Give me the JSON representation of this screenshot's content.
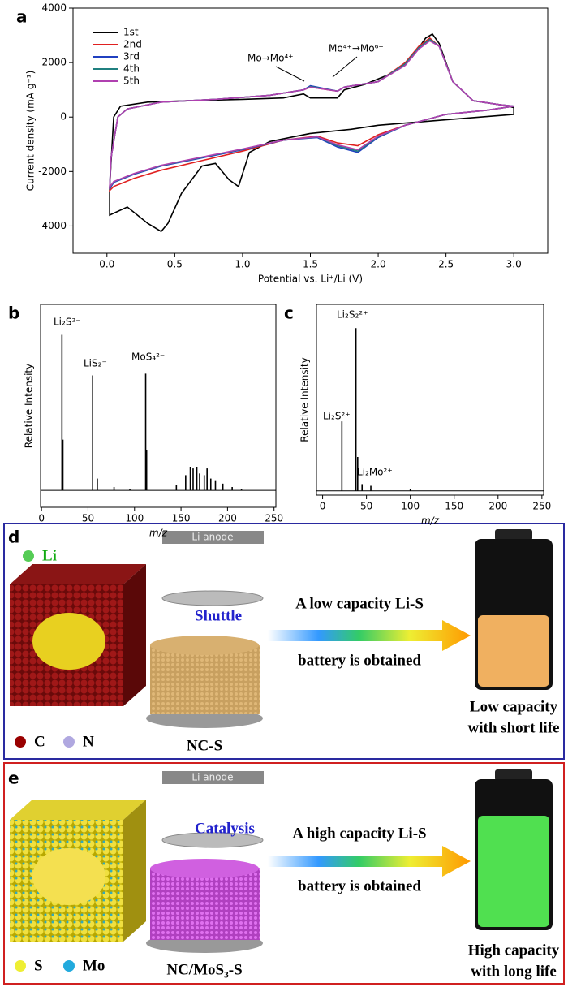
{
  "chart_data": [
    {
      "type": "line",
      "panel": "a",
      "xlabel": "Potential vs. Li⁺/Li (V)",
      "ylabel": "Current density (mA g⁻¹)",
      "xlim": [
        -0.25,
        3.25
      ],
      "ylim": [
        -5000,
        4000
      ],
      "xticks": [
        {
          "value": 0,
          "label": "0.0"
        },
        {
          "value": 0.5,
          "label": "0.5"
        },
        {
          "value": 1,
          "label": "1.0"
        },
        {
          "value": 1.5,
          "label": "1.5"
        },
        {
          "value": 2,
          "label": "2.0"
        },
        {
          "value": 2.5,
          "label": "2.5"
        },
        {
          "value": 3,
          "label": "3.0"
        }
      ],
      "yticks": [
        -4000,
        -2000,
        0,
        2000,
        4000
      ],
      "legend": "upper left",
      "annotations": [
        "Mo→Mo⁴⁺",
        "Mo⁴⁺→Mo⁶⁺"
      ],
      "series": [
        {
          "name": "1st",
          "color": "#000000",
          "x": [
            3.0,
            2.5,
            2.0,
            1.8,
            1.6,
            1.5,
            1.2,
            1.05,
            0.97,
            0.9,
            0.8,
            0.7,
            0.55,
            0.45,
            0.4,
            0.3,
            0.15,
            0.02,
            0.02,
            0.05,
            0.1,
            0.3,
            0.6,
            1.0,
            1.3,
            1.45,
            1.5,
            1.7,
            1.75,
            1.9,
            2.1,
            2.25,
            2.35,
            2.4,
            2.45,
            2.55,
            2.7,
            2.9,
            3.0,
            3.0
          ],
          "values": [
            100,
            -100,
            -300,
            -450,
            -550,
            -600,
            -900,
            -1300,
            -2550,
            -2300,
            -1700,
            -1800,
            -2800,
            -3900,
            -4200,
            -3900,
            -3300,
            -3600,
            -2600,
            0,
            400,
            550,
            600,
            650,
            700,
            850,
            700,
            700,
            1000,
            1200,
            1600,
            2200,
            2900,
            3050,
            2700,
            1300,
            600,
            450,
            350,
            100
          ]
        },
        {
          "name": "2nd",
          "color": "#e02020",
          "x": [
            3.0,
            2.8,
            2.5,
            2.2,
            2.0,
            1.85,
            1.7,
            1.55,
            1.3,
            1.0,
            0.7,
            0.4,
            0.2,
            0.05,
            0.02,
            0.03,
            0.08,
            0.15,
            0.4,
            0.8,
            1.2,
            1.45,
            1.5,
            1.7,
            1.75,
            2.0,
            2.2,
            2.3,
            2.38,
            2.45,
            2.55,
            2.7,
            2.9,
            3.0
          ],
          "values": [
            400,
            250,
            100,
            -300,
            -650,
            -1050,
            -950,
            -700,
            -850,
            -1250,
            -1600,
            -1950,
            -2250,
            -2550,
            -2700,
            -1500,
            0,
            300,
            550,
            650,
            800,
            1000,
            1100,
            950,
            1100,
            1300,
            2000,
            2600,
            2900,
            2600,
            1300,
            600,
            450,
            400
          ]
        },
        {
          "name": "3rd",
          "color": "#2040c0",
          "x": [
            3.0,
            2.8,
            2.5,
            2.2,
            2.0,
            1.85,
            1.7,
            1.55,
            1.3,
            1.0,
            0.7,
            0.4,
            0.2,
            0.05,
            0.02,
            0.03,
            0.08,
            0.15,
            0.4,
            0.8,
            1.2,
            1.45,
            1.5,
            1.7,
            1.75,
            2.0,
            2.2,
            2.3,
            2.38,
            2.45,
            2.55,
            2.7,
            2.9,
            3.0
          ],
          "values": [
            400,
            250,
            100,
            -300,
            -750,
            -1300,
            -1100,
            -750,
            -850,
            -1200,
            -1500,
            -1800,
            -2100,
            -2400,
            -2650,
            -1500,
            0,
            300,
            550,
            650,
            800,
            1000,
            1150,
            950,
            1100,
            1300,
            1950,
            2550,
            2850,
            2600,
            1300,
            600,
            450,
            400
          ]
        },
        {
          "name": "4th",
          "color": "#208080",
          "x": [
            3.0,
            2.8,
            2.5,
            2.2,
            2.0,
            1.85,
            1.7,
            1.55,
            1.3,
            1.0,
            0.7,
            0.4,
            0.2,
            0.05,
            0.02,
            0.03,
            0.08,
            0.15,
            0.4,
            0.8,
            1.2,
            1.45,
            1.5,
            1.7,
            1.75,
            2.0,
            2.2,
            2.3,
            2.38,
            2.45,
            2.55,
            2.7,
            2.9,
            3.0
          ],
          "values": [
            400,
            250,
            100,
            -300,
            -720,
            -1250,
            -1050,
            -730,
            -850,
            -1180,
            -1480,
            -1780,
            -2080,
            -2380,
            -2600,
            -1500,
            0,
            300,
            550,
            650,
            800,
            1000,
            1120,
            950,
            1100,
            1300,
            1950,
            2550,
            2850,
            2600,
            1300,
            600,
            450,
            400
          ]
        },
        {
          "name": "5th",
          "color": "#b040b0",
          "x": [
            3.0,
            2.8,
            2.5,
            2.2,
            2.0,
            1.85,
            1.7,
            1.55,
            1.3,
            1.0,
            0.7,
            0.4,
            0.2,
            0.05,
            0.02,
            0.03,
            0.08,
            0.15,
            0.4,
            0.8,
            1.2,
            1.45,
            1.5,
            1.7,
            1.75,
            2.0,
            2.2,
            2.3,
            2.38,
            2.45,
            2.55,
            2.7,
            2.9,
            3.0
          ],
          "values": [
            400,
            250,
            100,
            -300,
            -700,
            -1200,
            -1020,
            -720,
            -850,
            -1170,
            -1470,
            -1770,
            -2070,
            -2370,
            -2580,
            -1500,
            0,
            300,
            550,
            650,
            800,
            1000,
            1100,
            950,
            1100,
            1300,
            1900,
            2500,
            2800,
            2600,
            1300,
            600,
            450,
            400
          ]
        }
      ]
    },
    {
      "type": "stem",
      "panel": "b",
      "xlabel": "m/z",
      "ylabel": "Relative Intensity",
      "color": "#000000",
      "xlim": [
        -1,
        252
      ],
      "ylim": [
        -10,
        110
      ],
      "xticks": [
        0,
        50,
        100,
        150,
        200,
        250
      ],
      "annotations": [
        "Li₂S²⁻",
        "LiS₂⁻",
        "MoS₄²⁻"
      ],
      "x": [
        22,
        23,
        55,
        60,
        78,
        95,
        112,
        113,
        145,
        155,
        160,
        163,
        167,
        170,
        175,
        178,
        182,
        187,
        195,
        205,
        215
      ],
      "values": [
        92,
        30,
        68,
        7,
        2,
        1,
        69,
        24,
        3,
        9,
        14,
        13,
        14,
        10,
        9,
        13,
        7,
        6,
        4,
        2,
        1
      ]
    },
    {
      "type": "stem",
      "panel": "c",
      "xlabel": "m/z",
      "ylabel": "Relative Intensity",
      "color": "#000000",
      "xlim": [
        -7,
        252
      ],
      "ylim": [
        -2.5,
        110
      ],
      "xticks": [
        0,
        50,
        100,
        150,
        200,
        250
      ],
      "annotations": [
        "Li₂S₂²⁺",
        "Li₂S²⁺",
        "Li₂Mo²⁺"
      ],
      "x": [
        22,
        38,
        40,
        45,
        55,
        100
      ],
      "values": [
        41,
        96,
        20,
        4,
        3,
        1
      ]
    }
  ],
  "diagrams": [
    {
      "panel": "d",
      "anode": "Li anode",
      "li": "Li",
      "flow": "Shuttle",
      "line1": "A low capacity Li-S",
      "line2": "battery is obtained",
      "legend": [
        "C",
        "N"
      ],
      "caption": "NC-S",
      "result": [
        "Low capacity",
        "with short life"
      ]
    },
    {
      "panel": "e",
      "anode": "Li anode",
      "flow": "Catalysis",
      "line1": "A high capacity Li-S",
      "line2": "battery is obtained",
      "legend": [
        "S",
        "Mo"
      ],
      "caption": "NC/MoS₃-S",
      "result": [
        "High capacity",
        "with long life"
      ]
    }
  ]
}
